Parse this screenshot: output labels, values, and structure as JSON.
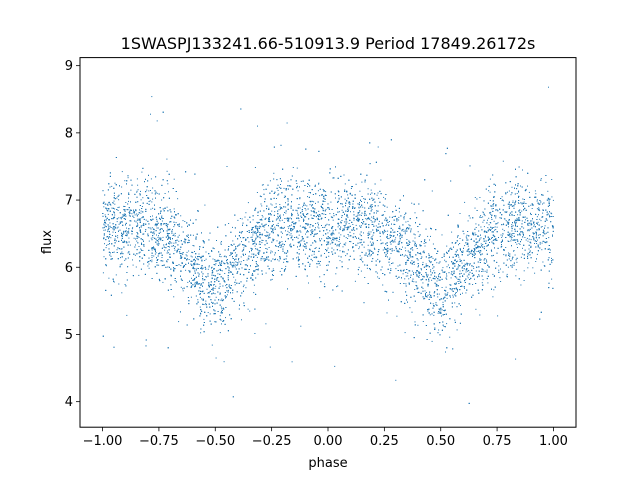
{
  "chart_data": {
    "type": "scatter",
    "title": "1SWASPJ133241.66-510913.9 Period 17849.26172s",
    "xlabel": "phase",
    "ylabel": "flux",
    "xlim": [
      -1.1,
      1.1
    ],
    "ylim": [
      3.62,
      9.12
    ],
    "xticks": [
      -1.0,
      -0.75,
      -0.5,
      -0.25,
      0.0,
      0.25,
      0.5,
      0.75,
      1.0
    ],
    "xtick_labels": [
      "−1.00",
      "−0.75",
      "−0.50",
      "−0.25",
      "0.00",
      "0.25",
      "0.50",
      "0.75",
      "1.00"
    ],
    "yticks": [
      4,
      5,
      6,
      7,
      8,
      9
    ],
    "ytick_labels": [
      "4",
      "5",
      "6",
      "7",
      "8",
      "9"
    ],
    "grid": false,
    "marker_color": "#1f77b4",
    "series": [
      {
        "x": [
          -1.0,
          -0.9,
          -0.8,
          -0.7,
          -0.6,
          -0.55,
          -0.5,
          -0.45,
          -0.4,
          -0.3,
          -0.2,
          -0.1,
          0.0,
          0.1,
          0.2,
          0.3,
          0.4,
          0.45,
          0.5,
          0.55,
          0.6,
          0.7,
          0.8,
          0.9,
          1.0
        ],
        "y": [
          6.55,
          6.62,
          6.6,
          6.42,
          6.05,
          5.8,
          5.62,
          5.8,
          6.05,
          6.42,
          6.6,
          6.62,
          6.6,
          6.62,
          6.6,
          6.42,
          6.05,
          5.8,
          5.62,
          5.8,
          6.05,
          6.42,
          6.6,
          6.62,
          6.55
        ],
        "spread": [
          0.35,
          0.35,
          0.35,
          0.35,
          0.35,
          0.35,
          0.4,
          0.35,
          0.35,
          0.35,
          0.35,
          0.35,
          0.35,
          0.35,
          0.35,
          0.35,
          0.35,
          0.35,
          0.4,
          0.35,
          0.35,
          0.35,
          0.35,
          0.35,
          0.35
        ]
      }
    ]
  }
}
